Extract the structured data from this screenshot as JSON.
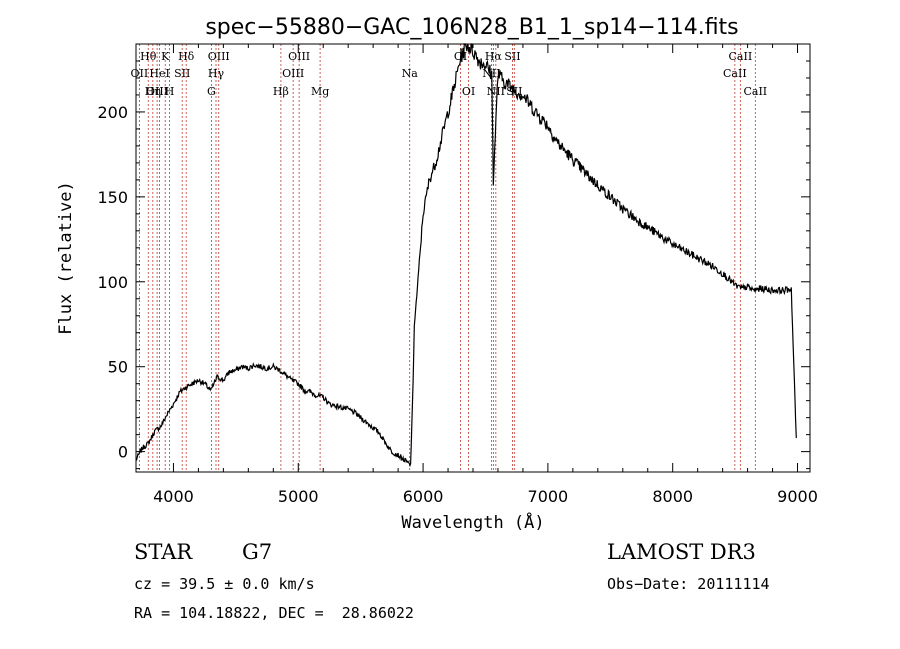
{
  "chart_data": {
    "type": "line",
    "title": "spec−55880−GAC_106N28_B1_1_sp14−114.fits",
    "xlabel": "Wavelength (Å)",
    "ylabel": "Flux (relative)",
    "xlim": [
      3700,
      9100
    ],
    "ylim": [
      -12,
      240
    ],
    "xticks": [
      4000,
      5000,
      6000,
      7000,
      8000,
      9000
    ],
    "yticks": [
      0,
      50,
      100,
      150,
      200
    ],
    "series": [
      {
        "name": "spectrum",
        "x": [
          3700,
          3750,
          3800,
          3850,
          3900,
          3950,
          4000,
          4050,
          4100,
          4150,
          4200,
          4250,
          4300,
          4350,
          4400,
          4450,
          4500,
          4550,
          4600,
          4650,
          4700,
          4750,
          4800,
          4850,
          4900,
          4950,
          5000,
          5050,
          5100,
          5150,
          5200,
          5250,
          5300,
          5350,
          5400,
          5450,
          5500,
          5550,
          5600,
          5650,
          5700,
          5750,
          5800,
          5850,
          5900,
          5920,
          5930,
          5950,
          6000,
          6050,
          6100,
          6150,
          6200,
          6250,
          6300,
          6350,
          6400,
          6450,
          6500,
          6550,
          6563,
          6600,
          6650,
          6700,
          6750,
          6800,
          6850,
          6900,
          6950,
          7000,
          7050,
          7100,
          7200,
          7300,
          7400,
          7500,
          7600,
          7700,
          7800,
          7900,
          8000,
          8100,
          8200,
          8300,
          8400,
          8500,
          8550,
          8600,
          8650,
          8700,
          8800,
          8900,
          8950,
          8990
        ],
        "values": [
          -5,
          2,
          5,
          12,
          15,
          22,
          28,
          35,
          38,
          40,
          42,
          40,
          36,
          44,
          42,
          47,
          48,
          50,
          49,
          51,
          50,
          49,
          50,
          48,
          45,
          42,
          40,
          36,
          35,
          33,
          32,
          28,
          27,
          26,
          25,
          23,
          20,
          17,
          14,
          11,
          5,
          0,
          -2,
          -5,
          -8,
          40,
          75,
          92,
          140,
          160,
          170,
          185,
          200,
          215,
          232,
          240,
          236,
          230,
          228,
          222,
          160,
          222,
          218,
          215,
          212,
          210,
          205,
          200,
          196,
          192,
          185,
          180,
          172,
          164,
          157,
          150,
          143,
          137,
          132,
          127,
          122,
          118,
          114,
          110,
          105,
          98,
          96,
          97,
          95,
          96,
          95,
          95,
          96,
          8
        ]
      }
    ],
    "lines": [
      {
        "name": "O II",
        "wavelength": 3727,
        "labels": [
          "OII"
        ],
        "row": 1
      },
      {
        "name": "H theta",
        "wavelength": 3798,
        "labels": [
          "Hθ"
        ],
        "row": 0
      },
      {
        "name": "H eta",
        "wavelength": 3835,
        "labels": [
          "Hη"
        ],
        "row": 2
      },
      {
        "name": "Ne III",
        "wavelength": 3869,
        "labels": [
          "OIII"
        ],
        "row": 2
      },
      {
        "name": "He I",
        "wavelength": 3889,
        "labels": [
          "HeI"
        ],
        "row": 1
      },
      {
        "name": "K",
        "wavelength": 3934,
        "labels": [
          "K"
        ],
        "row": 0
      },
      {
        "name": "H",
        "wavelength": 3969,
        "labels": [
          "H"
        ],
        "row": 2
      },
      {
        "name": "S II",
        "wavelength": 4070,
        "labels": [
          "SII"
        ],
        "row": 1
      },
      {
        "name": "H delta",
        "wavelength": 4102,
        "labels": [
          "Hδ"
        ],
        "row": 0
      },
      {
        "name": "G",
        "wavelength": 4304,
        "labels": [
          "G"
        ],
        "row": 2
      },
      {
        "name": "H gamma",
        "wavelength": 4341,
        "labels": [
          "Hγ"
        ],
        "row": 1
      },
      {
        "name": "O III 4363",
        "wavelength": 4363,
        "labels": [
          "OIII"
        ],
        "row": 0
      },
      {
        "name": "H beta",
        "wavelength": 4861,
        "labels": [
          "Hβ"
        ],
        "row": 2
      },
      {
        "name": "O III 4959",
        "wavelength": 4959,
        "labels": [
          "OIII"
        ],
        "row": 1
      },
      {
        "name": "O III 5007",
        "wavelength": 5007,
        "labels": [
          "OIII"
        ],
        "row": 0
      },
      {
        "name": "Mg",
        "wavelength": 5175,
        "labels": [
          "Mg"
        ],
        "row": 2
      },
      {
        "name": "Na",
        "wavelength": 5893,
        "labels": [
          "Na"
        ],
        "row": 1
      },
      {
        "name": "O I 6300",
        "wavelength": 6300,
        "labels": [
          "OI"
        ],
        "row": 0
      },
      {
        "name": "O I 6364",
        "wavelength": 6364,
        "labels": [
          "OI"
        ],
        "row": 2
      },
      {
        "name": "N II 6548",
        "wavelength": 6548,
        "labels": [
          "NII"
        ],
        "row": 1
      },
      {
        "name": "H alpha",
        "wavelength": 6563,
        "labels": [
          "Hα"
        ],
        "row": 0
      },
      {
        "name": "N II 6583",
        "wavelength": 6583,
        "labels": [
          "NII"
        ],
        "row": 2
      },
      {
        "name": "S II 6716",
        "wavelength": 6716,
        "labels": [
          "SII"
        ],
        "row": 0
      },
      {
        "name": "S II 6731",
        "wavelength": 6731,
        "labels": [
          "SII"
        ],
        "row": 2
      },
      {
        "name": "Ca II 8498",
        "wavelength": 8498,
        "labels": [
          "CaII"
        ],
        "row": 1
      },
      {
        "name": "Ca II 8542",
        "wavelength": 8542,
        "labels": [
          "CaII"
        ],
        "row": 0
      },
      {
        "name": "Ca II 8662",
        "wavelength": 8662,
        "labels": [
          "CaII"
        ],
        "row": 2
      }
    ],
    "line_color": "#c0392b"
  },
  "info": {
    "object_class": "STAR",
    "subclass": "G7",
    "survey": "LAMOST DR3",
    "cz": "cz = 39.5 ± 0.0 km/s",
    "obs_date": "Obs−Date: 20111114",
    "coords": "RA = 104.18822, DEC =  28.86022"
  }
}
